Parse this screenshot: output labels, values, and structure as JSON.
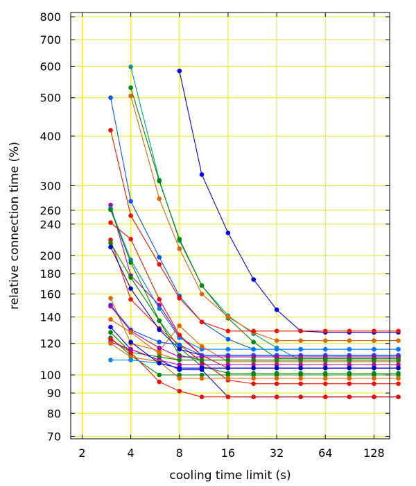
{
  "chart_data": {
    "type": "line",
    "xlabel": "cooling time limit (s)",
    "ylabel": "relative connection time (%)",
    "x_scale": "log2",
    "y_scale": "log",
    "xlim": [
      1.7,
      160
    ],
    "ylim": [
      69,
      820
    ],
    "x_ticks": [
      2,
      4,
      8,
      16,
      32,
      64,
      128
    ],
    "y_ticks": [
      70,
      80,
      90,
      100,
      120,
      140,
      160,
      180,
      200,
      240,
      260,
      300,
      400,
      500,
      600,
      700,
      800
    ],
    "grid": true,
    "grid_color": "#e6e61a",
    "x": [
      3,
      4,
      6,
      8,
      11,
      16,
      23,
      32,
      45,
      64,
      90,
      128,
      181
    ],
    "series": [
      {
        "color": "#0000ee",
        "values": [
          null,
          null,
          null,
          584,
          320,
          228,
          174,
          146,
          129,
          128,
          128,
          128,
          128
        ]
      },
      {
        "color": "#009999",
        "values": [
          null,
          598,
          310,
          218,
          168,
          141,
          127,
          117,
          109,
          109,
          109,
          109,
          109
        ]
      },
      {
        "color": "#008800",
        "values": [
          null,
          530,
          308,
          220,
          168,
          139,
          121,
          110,
          110,
          110,
          110,
          110,
          110
        ]
      },
      {
        "color": "#dd6600",
        "values": [
          null,
          505,
          278,
          208,
          160,
          140,
          128,
          122,
          122,
          122,
          122,
          122,
          122
        ]
      },
      {
        "color": "#0055ff",
        "values": [
          500,
          274,
          198,
          158,
          136,
          123,
          116,
          116,
          116,
          116,
          116,
          116,
          116
        ]
      },
      {
        "color": "#ee1100",
        "values": [
          414,
          252,
          190,
          156,
          136,
          129,
          129,
          129,
          129,
          129,
          129,
          129,
          129
        ]
      },
      {
        "color": "#aa00aa",
        "values": [
          268,
          178,
          150,
          125,
          112,
          112,
          112,
          112,
          112,
          112,
          112,
          112,
          112
        ]
      },
      {
        "color": "#0077ff",
        "values": [
          263,
          195,
          147,
          124,
          116,
          116,
          116,
          116,
          116,
          116,
          116,
          116,
          116
        ]
      },
      {
        "color": "#008800",
        "values": [
          261,
          192,
          137,
          117,
          105,
          101,
          101,
          101,
          101,
          101,
          101,
          101,
          101
        ]
      },
      {
        "color": "#ee1100",
        "values": [
          242,
          220,
          155,
          126,
          112,
          104,
          104,
          104,
          104,
          104,
          104,
          104,
          104
        ]
      },
      {
        "color": "#ee1100",
        "values": [
          219,
          155,
          131,
          119,
          108,
          97,
          95,
          95,
          95,
          95,
          95,
          95,
          95
        ]
      },
      {
        "color": "#008800",
        "values": [
          215,
          176,
          137,
          112,
          109,
          109,
          109,
          109,
          109,
          109,
          109,
          109,
          109
        ]
      },
      {
        "color": "#0000cc",
        "values": [
          210,
          165,
          130,
          116,
          112,
          112,
          112,
          112,
          112,
          112,
          112,
          112,
          112
        ]
      },
      {
        "color": "#dd6600",
        "values": [
          156,
          120,
          115,
          133,
          118,
          108,
          108,
          108,
          108,
          108,
          108,
          108,
          108
        ]
      },
      {
        "color": "#0055ff",
        "values": [
          150,
          130,
          121,
          119,
          112,
          112,
          112,
          112,
          112,
          112,
          112,
          112,
          112
        ]
      },
      {
        "color": "#aa00aa",
        "values": [
          149,
          129,
          117,
          111,
          111,
          111,
          111,
          111,
          111,
          111,
          111,
          111,
          111
        ]
      },
      {
        "color": "#dd6600",
        "values": [
          138,
          128,
          113,
          109,
          109,
          109,
          109,
          109,
          109,
          109,
          109,
          109,
          109
        ]
      },
      {
        "color": "#0000ee",
        "values": [
          132,
          116,
          109,
          103,
          103,
          88,
          88,
          88,
          88,
          88,
          88,
          88,
          88
        ]
      },
      {
        "color": "#008800",
        "values": [
          128,
          114,
          111,
          109,
          109,
          109,
          109,
          109,
          109,
          109,
          109,
          109,
          109
        ]
      },
      {
        "color": "#008800",
        "values": [
          124,
          112,
          100,
          100,
          100,
          100,
          100,
          100,
          100,
          100,
          100,
          100,
          100
        ]
      },
      {
        "color": "#ee1100",
        "values": [
          123,
          114,
          96,
          91,
          88,
          88,
          88,
          88,
          88,
          88,
          88,
          88,
          88
        ]
      },
      {
        "color": "#aa00aa",
        "values": [
          121,
          116,
          109,
          106,
          106,
          106,
          106,
          106,
          106,
          106,
          106,
          106,
          106
        ]
      },
      {
        "color": "#dd6600",
        "values": [
          120,
          111,
          108,
          98,
          98,
          98,
          98,
          98,
          98,
          98,
          98,
          98,
          98
        ]
      },
      {
        "color": "#0088ee",
        "values": [
          109,
          109,
          107,
          104,
          104,
          104,
          104,
          104,
          104,
          104,
          104,
          104,
          104
        ]
      },
      {
        "color": "#0000cc",
        "values": [
          null,
          121,
          107,
          104,
          104,
          104,
          104,
          104,
          104,
          104,
          104,
          104,
          104
        ]
      }
    ]
  }
}
